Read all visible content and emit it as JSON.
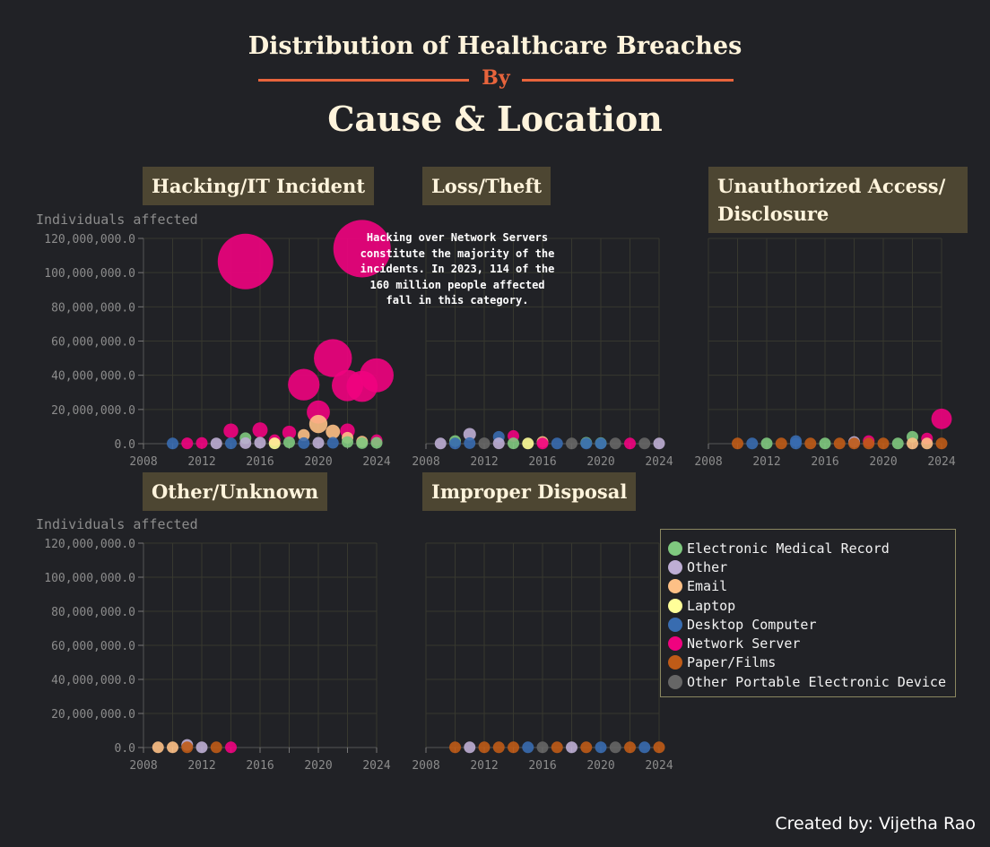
{
  "header": {
    "title_line1": "Distribution of Healthcare Breaches",
    "by": "By",
    "title_line2": "Cause & Location"
  },
  "annotation": "Hacking over Network Servers constitute the majority of the incidents. In 2023, 114 of the 160 million people affected fall in this category.",
  "credit": "Created by: Vijetha Rao",
  "legend": {
    "items": [
      {
        "label": "Electronic Medical Record",
        "color": "#7fc97f"
      },
      {
        "label": "Other",
        "color": "#beaed4"
      },
      {
        "label": "Email",
        "color": "#fdc086"
      },
      {
        "label": "Laptop",
        "color": "#ffff99"
      },
      {
        "label": "Desktop Computer",
        "color": "#386cb0"
      },
      {
        "label": "Network Server",
        "color": "#f0027f"
      },
      {
        "label": "Paper/Films",
        "color": "#bf5b17"
      },
      {
        "label": "Other Portable Electronic Device",
        "color": "#666666"
      }
    ]
  },
  "chart_data": [
    {
      "type": "scatter",
      "title": "Hacking/IT Incident",
      "ylabel": "Individuals affected",
      "xlim": [
        2008,
        2024
      ],
      "ylim": [
        0,
        120000000
      ],
      "xticks": [
        2008,
        2012,
        2016,
        2020,
        2024
      ],
      "yticks": [
        0,
        20000000,
        40000000,
        60000000,
        80000000,
        100000000,
        120000000
      ],
      "ytick_labels": [
        "0.0",
        "20,000,000.0",
        "40,000,000.0",
        "60,000,000.0",
        "80,000,000.0",
        "100,000,000.0",
        "120,000,000.0"
      ],
      "points": [
        {
          "x": 2010,
          "y": 100000,
          "loc": "Desktop Computer"
        },
        {
          "x": 2011,
          "y": 200000,
          "loc": "Network Server"
        },
        {
          "x": 2012,
          "y": 400000,
          "loc": "Network Server"
        },
        {
          "x": 2013,
          "y": 150000,
          "loc": "Other"
        },
        {
          "x": 2014,
          "y": 7500000,
          "loc": "Network Server"
        },
        {
          "x": 2014,
          "y": 200000,
          "loc": "Desktop Computer"
        },
        {
          "x": 2015,
          "y": 106500000,
          "loc": "Network Server"
        },
        {
          "x": 2015,
          "y": 3200000,
          "loc": "Electronic Medical Record"
        },
        {
          "x": 2015,
          "y": 300000,
          "loc": "Other"
        },
        {
          "x": 2016,
          "y": 8000000,
          "loc": "Network Server"
        },
        {
          "x": 2016,
          "y": 600000,
          "loc": "Other"
        },
        {
          "x": 2017,
          "y": 2000000,
          "loc": "Network Server"
        },
        {
          "x": 2017,
          "y": 200000,
          "loc": "Laptop"
        },
        {
          "x": 2018,
          "y": 6500000,
          "loc": "Network Server"
        },
        {
          "x": 2018,
          "y": 800000,
          "loc": "Electronic Medical Record"
        },
        {
          "x": 2019,
          "y": 34500000,
          "loc": "Network Server"
        },
        {
          "x": 2019,
          "y": 5000000,
          "loc": "Email"
        },
        {
          "x": 2019,
          "y": 300000,
          "loc": "Desktop Computer"
        },
        {
          "x": 2020,
          "y": 18500000,
          "loc": "Network Server"
        },
        {
          "x": 2020,
          "y": 11500000,
          "loc": "Email"
        },
        {
          "x": 2020,
          "y": 500000,
          "loc": "Other"
        },
        {
          "x": 2021,
          "y": 50000000,
          "loc": "Network Server"
        },
        {
          "x": 2021,
          "y": 7000000,
          "loc": "Email"
        },
        {
          "x": 2021,
          "y": 500000,
          "loc": "Desktop Computer"
        },
        {
          "x": 2022,
          "y": 34000000,
          "loc": "Network Server"
        },
        {
          "x": 2022,
          "y": 7500000,
          "loc": "Network Server"
        },
        {
          "x": 2022,
          "y": 3500000,
          "loc": "Email"
        },
        {
          "x": 2022,
          "y": 1000000,
          "loc": "Electronic Medical Record"
        },
        {
          "x": 2023,
          "y": 114000000,
          "loc": "Network Server"
        },
        {
          "x": 2023,
          "y": 33500000,
          "loc": "Network Server"
        },
        {
          "x": 2023,
          "y": 1200000,
          "loc": "Email"
        },
        {
          "x": 2023,
          "y": 300000,
          "loc": "Electronic Medical Record"
        },
        {
          "x": 2024,
          "y": 40000000,
          "loc": "Network Server"
        },
        {
          "x": 2024,
          "y": 2000000,
          "loc": "Network Server"
        },
        {
          "x": 2024,
          "y": 500000,
          "loc": "Electronic Medical Record"
        }
      ]
    },
    {
      "type": "scatter",
      "title": "Loss/Theft",
      "xlim": [
        2008,
        2024
      ],
      "ylim": [
        0,
        120000000
      ],
      "xticks": [
        2008,
        2012,
        2016,
        2020,
        2024
      ],
      "points": [
        {
          "x": 2009,
          "y": 100000,
          "loc": "Other"
        },
        {
          "x": 2010,
          "y": 1500000,
          "loc": "Electronic Medical Record"
        },
        {
          "x": 2010,
          "y": 100000,
          "loc": "Desktop Computer"
        },
        {
          "x": 2011,
          "y": 5500000,
          "loc": "Other"
        },
        {
          "x": 2011,
          "y": 300000,
          "loc": "Desktop Computer"
        },
        {
          "x": 2012,
          "y": 200000,
          "loc": "Other Portable Electronic Device"
        },
        {
          "x": 2013,
          "y": 4000000,
          "loc": "Desktop Computer"
        },
        {
          "x": 2013,
          "y": 200000,
          "loc": "Other"
        },
        {
          "x": 2014,
          "y": 4500000,
          "loc": "Network Server"
        },
        {
          "x": 2014,
          "y": 200000,
          "loc": "Electronic Medical Record"
        },
        {
          "x": 2015,
          "y": 100000,
          "loc": "Laptop"
        },
        {
          "x": 2016,
          "y": 1000000,
          "loc": "Email"
        },
        {
          "x": 2016,
          "y": 100000,
          "loc": "Network Server"
        },
        {
          "x": 2017,
          "y": 100000,
          "loc": "Desktop Computer"
        },
        {
          "x": 2018,
          "y": 100000,
          "loc": "Other Portable Electronic Device"
        },
        {
          "x": 2019,
          "y": 100000,
          "loc": "Desktop Computer"
        },
        {
          "x": 2019,
          "y": 500000,
          "loc": "Electronic Medical Record"
        },
        {
          "x": 2020,
          "y": 100000,
          "loc": "Desktop Computer"
        },
        {
          "x": 2020,
          "y": 300000,
          "loc": "Electronic Medical Record"
        },
        {
          "x": 2021,
          "y": 100000,
          "loc": "Other Portable Electronic Device"
        },
        {
          "x": 2022,
          "y": 100000,
          "loc": "Network Server"
        },
        {
          "x": 2023,
          "y": 100000,
          "loc": "Other Portable Electronic Device"
        },
        {
          "x": 2024,
          "y": 100000,
          "loc": "Other"
        }
      ]
    },
    {
      "type": "scatter",
      "title": "Unauthorized Access/ Disclosure",
      "xlim": [
        2008,
        2024
      ],
      "ylim": [
        0,
        120000000
      ],
      "xticks": [
        2008,
        2012,
        2016,
        2020,
        2024
      ],
      "points": [
        {
          "x": 2010,
          "y": 100000,
          "loc": "Paper/Films"
        },
        {
          "x": 2011,
          "y": 100000,
          "loc": "Desktop Computer"
        },
        {
          "x": 2012,
          "y": 100000,
          "loc": "Electronic Medical Record"
        },
        {
          "x": 2013,
          "y": 100000,
          "loc": "Paper/Films"
        },
        {
          "x": 2014,
          "y": 1500000,
          "loc": "Desktop Computer"
        },
        {
          "x": 2014,
          "y": 100000,
          "loc": "Desktop Computer"
        },
        {
          "x": 2015,
          "y": 100000,
          "loc": "Paper/Films"
        },
        {
          "x": 2016,
          "y": 100000,
          "loc": "Electronic Medical Record"
        },
        {
          "x": 2017,
          "y": 100000,
          "loc": "Paper/Films"
        },
        {
          "x": 2018,
          "y": 1000000,
          "loc": "Other"
        },
        {
          "x": 2018,
          "y": 100000,
          "loc": "Paper/Films"
        },
        {
          "x": 2019,
          "y": 1500000,
          "loc": "Network Server"
        },
        {
          "x": 2019,
          "y": 100000,
          "loc": "Paper/Films"
        },
        {
          "x": 2020,
          "y": 100000,
          "loc": "Paper/Films"
        },
        {
          "x": 2021,
          "y": 100000,
          "loc": "Electronic Medical Record"
        },
        {
          "x": 2022,
          "y": 4000000,
          "loc": "Electronic Medical Record"
        },
        {
          "x": 2022,
          "y": 100000,
          "loc": "Email"
        },
        {
          "x": 2023,
          "y": 3000000,
          "loc": "Network Server"
        },
        {
          "x": 2023,
          "y": 100000,
          "loc": "Email"
        },
        {
          "x": 2024,
          "y": 14500000,
          "loc": "Network Server"
        },
        {
          "x": 2024,
          "y": 100000,
          "loc": "Paper/Films"
        }
      ]
    },
    {
      "type": "scatter",
      "title": "Other/Unknown",
      "ylabel": "Individuals affected",
      "xlim": [
        2008,
        2024
      ],
      "ylim": [
        0,
        120000000
      ],
      "xticks": [
        2008,
        2012,
        2016,
        2020,
        2024
      ],
      "yticks": [
        0,
        20000000,
        40000000,
        60000000,
        80000000,
        100000000,
        120000000
      ],
      "ytick_labels": [
        "0.0",
        "20,000,000.0",
        "40,000,000.0",
        "60,000,000.0",
        "80,000,000.0",
        "100,000,000.0",
        "120,000,000.0"
      ],
      "points": [
        {
          "x": 2009,
          "y": 100000,
          "loc": "Email"
        },
        {
          "x": 2010,
          "y": 100000,
          "loc": "Email"
        },
        {
          "x": 2011,
          "y": 1500000,
          "loc": "Other"
        },
        {
          "x": 2011,
          "y": 100000,
          "loc": "Paper/Films"
        },
        {
          "x": 2012,
          "y": 100000,
          "loc": "Other"
        },
        {
          "x": 2013,
          "y": 100000,
          "loc": "Paper/Films"
        },
        {
          "x": 2014,
          "y": 100000,
          "loc": "Network Server"
        }
      ]
    },
    {
      "type": "scatter",
      "title": "Improper Disposal",
      "xlim": [
        2008,
        2024
      ],
      "ylim": [
        0,
        120000000
      ],
      "xticks": [
        2008,
        2012,
        2016,
        2020,
        2024
      ],
      "points": [
        {
          "x": 2010,
          "y": 100000,
          "loc": "Paper/Films"
        },
        {
          "x": 2011,
          "y": 100000,
          "loc": "Other"
        },
        {
          "x": 2012,
          "y": 100000,
          "loc": "Paper/Films"
        },
        {
          "x": 2013,
          "y": 100000,
          "loc": "Paper/Films"
        },
        {
          "x": 2014,
          "y": 100000,
          "loc": "Paper/Films"
        },
        {
          "x": 2015,
          "y": 100000,
          "loc": "Desktop Computer"
        },
        {
          "x": 2016,
          "y": 100000,
          "loc": "Other Portable Electronic Device"
        },
        {
          "x": 2017,
          "y": 100000,
          "loc": "Paper/Films"
        },
        {
          "x": 2018,
          "y": 100000,
          "loc": "Other"
        },
        {
          "x": 2019,
          "y": 100000,
          "loc": "Paper/Films"
        },
        {
          "x": 2020,
          "y": 100000,
          "loc": "Desktop Computer"
        },
        {
          "x": 2021,
          "y": 100000,
          "loc": "Other Portable Electronic Device"
        },
        {
          "x": 2022,
          "y": 100000,
          "loc": "Paper/Films"
        },
        {
          "x": 2023,
          "y": 100000,
          "loc": "Desktop Computer"
        },
        {
          "x": 2024,
          "y": 100000,
          "loc": "Paper/Films"
        }
      ]
    }
  ]
}
